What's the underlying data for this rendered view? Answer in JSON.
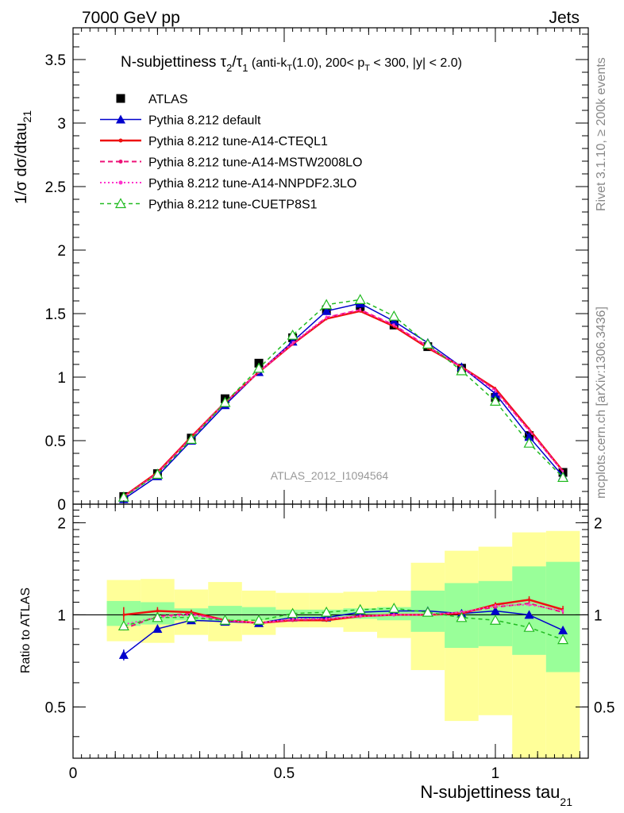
{
  "header": {
    "left": "7000 GeV pp",
    "right": "Jets"
  },
  "side_text": {
    "rivet": "Rivet 3.1.10, ≥ 200k events",
    "mcplots": "mcplots.cern.ch [arXiv:1306.3436]"
  },
  "analysis_id": "ATLAS_2012_I1094564",
  "title": {
    "main": "N-subjettiness τ",
    "sub2": "2",
    "slash": "/τ",
    "sub1": "1",
    "cuts_a": " (anti-k",
    "cuts_b": "T",
    "cuts_c": "(1.0), 200< p",
    "cuts_d": "T",
    "cuts_e": " < 300, |y| < 2.0)"
  },
  "labels": {
    "y_main": "1/σ dσ/dtau",
    "y_main_sub": "21",
    "y_ratio": "Ratio to ATLAS",
    "x_main": "N-subjettiness tau",
    "x_main_sub": "21"
  },
  "chart_data": [
    {
      "type": "line",
      "panel": "main",
      "title": "N-subjettiness τ2/τ1 (anti-kT(1.0), 200< pT < 300, |y| < 2.0)",
      "xlabel": "N-subjettiness tau21",
      "ylabel": "1/σ dσ/dtau21",
      "xlim": [
        0,
        1.22
      ],
      "ylim": [
        0,
        3.75
      ],
      "yticks": [
        0,
        0.5,
        1,
        1.5,
        2,
        2.5,
        3,
        3.5
      ],
      "ytick_labels": [
        "0",
        "0.5",
        "1",
        "1.5",
        "2",
        "2.5",
        "3",
        "3.5"
      ],
      "x": [
        0.12,
        0.2,
        0.28,
        0.36,
        0.44,
        0.52,
        0.6,
        0.68,
        0.76,
        0.84,
        0.92,
        1.0,
        1.08,
        1.16
      ],
      "series": [
        {
          "name": "ATLAS",
          "color": "#000000",
          "style": "marker-square",
          "values": [
            0.06,
            0.24,
            0.52,
            0.83,
            1.11,
            1.31,
            1.53,
            1.55,
            1.41,
            1.24,
            1.07,
            0.84,
            0.54,
            0.25
          ]
        },
        {
          "name": "Pythia 8.212 default",
          "color": "#0000cc",
          "style": "solid-triangle",
          "values": [
            0.04,
            0.22,
            0.5,
            0.78,
            1.04,
            1.28,
            1.52,
            1.58,
            1.44,
            1.27,
            1.08,
            0.87,
            0.53,
            0.22
          ]
        },
        {
          "name": "Pythia 8.212 tune-A14-CTEQL1",
          "color": "#ee1111",
          "style": "solid-thick",
          "values": [
            0.06,
            0.25,
            0.53,
            0.8,
            1.04,
            1.26,
            1.46,
            1.52,
            1.4,
            1.23,
            1.08,
            0.91,
            0.59,
            0.26
          ]
        },
        {
          "name": "Pythia 8.212 tune-A14-MSTW2008LO",
          "color": "#ee1177",
          "style": "dashed",
          "values": [
            0.055,
            0.245,
            0.525,
            0.8,
            1.04,
            1.26,
            1.47,
            1.53,
            1.41,
            1.24,
            1.08,
            0.9,
            0.58,
            0.255
          ]
        },
        {
          "name": "Pythia 8.212 tune-A14-NNPDF2.3LO",
          "color": "#ff33cc",
          "style": "dotted",
          "values": [
            0.057,
            0.24,
            0.52,
            0.8,
            1.04,
            1.27,
            1.47,
            1.53,
            1.41,
            1.24,
            1.08,
            0.89,
            0.58,
            0.255
          ]
        },
        {
          "name": "Pythia 8.212 tune-CUETP8S1",
          "color": "#22bb22",
          "style": "dashed-open-triangle",
          "values": [
            0.055,
            0.235,
            0.51,
            0.8,
            1.07,
            1.33,
            1.57,
            1.61,
            1.48,
            1.26,
            1.05,
            0.81,
            0.48,
            0.21
          ]
        }
      ]
    },
    {
      "type": "line",
      "panel": "ratio",
      "ylabel": "Ratio to ATLAS",
      "xlabel": "N-subjettiness tau21",
      "xlim": [
        0,
        1.22
      ],
      "ylim": [
        0.34,
        2.3
      ],
      "log_y": true,
      "yticks": [
        0.5,
        1,
        2
      ],
      "ytick_labels": [
        "0.5",
        "1",
        "2"
      ],
      "xticks": [
        0,
        0.5,
        1
      ],
      "xtick_labels": [
        "0",
        "0.5",
        "1"
      ],
      "x": [
        0.12,
        0.2,
        0.28,
        0.36,
        0.44,
        0.52,
        0.6,
        0.68,
        0.76,
        0.84,
        0.92,
        1.0,
        1.08,
        1.16
      ],
      "bin_edges": [
        0.08,
        0.16,
        0.24,
        0.32,
        0.4,
        0.48,
        0.56,
        0.64,
        0.72,
        0.8,
        0.88,
        0.96,
        1.04,
        1.12,
        1.2
      ],
      "uncertainty_bands": {
        "inner_color": "#99ff99",
        "outer_color": "#ffff99",
        "inner_low": [
          0.92,
          0.93,
          0.96,
          0.95,
          0.96,
          0.97,
          0.97,
          0.97,
          0.96,
          0.88,
          0.78,
          0.79,
          0.74,
          0.65
        ],
        "inner_high": [
          1.11,
          1.1,
          1.05,
          1.07,
          1.06,
          1.04,
          1.04,
          1.05,
          1.06,
          1.2,
          1.27,
          1.29,
          1.44,
          1.49
        ],
        "outer_low": [
          0.82,
          0.81,
          0.86,
          0.82,
          0.86,
          0.91,
          0.91,
          0.88,
          0.84,
          0.66,
          0.45,
          0.47,
          0.34,
          0.34
        ],
        "outer_high": [
          1.3,
          1.31,
          1.21,
          1.28,
          1.2,
          1.18,
          1.18,
          1.19,
          1.2,
          1.48,
          1.62,
          1.67,
          1.86,
          1.88
        ]
      },
      "series": [
        {
          "name": "Pythia 8.212 default",
          "color": "#0000cc",
          "style": "solid-triangle",
          "values": [
            0.74,
            0.9,
            0.96,
            0.95,
            0.94,
            0.98,
            0.98,
            1.02,
            1.03,
            1.03,
            1.01,
            1.03,
            1.0,
            0.89
          ],
          "errors": [
            0.03,
            0.0,
            0.0,
            0.0,
            0.0,
            0.0,
            0.0,
            0.0,
            0.0,
            0.0,
            0.0,
            0.0,
            0.0,
            0.0
          ]
        },
        {
          "name": "Pythia 8.212 tune-A14-CTEQL1",
          "color": "#ee1111",
          "style": "solid-thick",
          "values": [
            1.0,
            1.03,
            1.02,
            0.96,
            0.94,
            0.96,
            0.96,
            0.99,
            1.0,
            1.0,
            1.01,
            1.08,
            1.12,
            1.04
          ],
          "errors": [
            0.06,
            0.03,
            0.02,
            0.01,
            0.01,
            0.01,
            0.01,
            0.01,
            0.01,
            0.01,
            0.01,
            0.02,
            0.03,
            0.03
          ]
        },
        {
          "name": "Pythia 8.212 tune-A14-MSTW2008LO",
          "color": "#ee1177",
          "style": "dashed",
          "values": [
            0.9,
            0.99,
            1.01,
            0.96,
            0.94,
            0.96,
            0.97,
            0.99,
            1.0,
            1.0,
            1.02,
            1.06,
            1.09,
            1.02
          ],
          "errors": [
            0.0,
            0.0,
            0.0,
            0.0,
            0.0,
            0.0,
            0.0,
            0.0,
            0.0,
            0.0,
            0.0,
            0.0,
            0.0,
            0.0
          ]
        },
        {
          "name": "Pythia 8.212 tune-A14-NNPDF2.3LO",
          "color": "#ff33cc",
          "style": "dotted",
          "values": [
            0.93,
            0.98,
            1.0,
            0.96,
            0.94,
            0.97,
            0.97,
            0.99,
            1.0,
            1.0,
            1.02,
            1.07,
            1.08,
            1.03
          ],
          "errors": [
            0.0,
            0.0,
            0.0,
            0.0,
            0.0,
            0.0,
            0.0,
            0.0,
            0.0,
            0.0,
            0.0,
            0.0,
            0.0,
            0.0
          ]
        },
        {
          "name": "Pythia 8.212 tune-CUETP8S1",
          "color": "#22bb22",
          "style": "dashed-open-triangle",
          "values": [
            0.92,
            0.98,
            0.98,
            0.96,
            0.96,
            1.01,
            1.02,
            1.04,
            1.05,
            1.02,
            0.98,
            0.96,
            0.91,
            0.83
          ],
          "errors": [
            0.0,
            0.0,
            0.0,
            0.0,
            0.0,
            0.0,
            0.0,
            0.0,
            0.0,
            0.0,
            0.0,
            0.0,
            0.0,
            0.0
          ]
        }
      ]
    }
  ]
}
